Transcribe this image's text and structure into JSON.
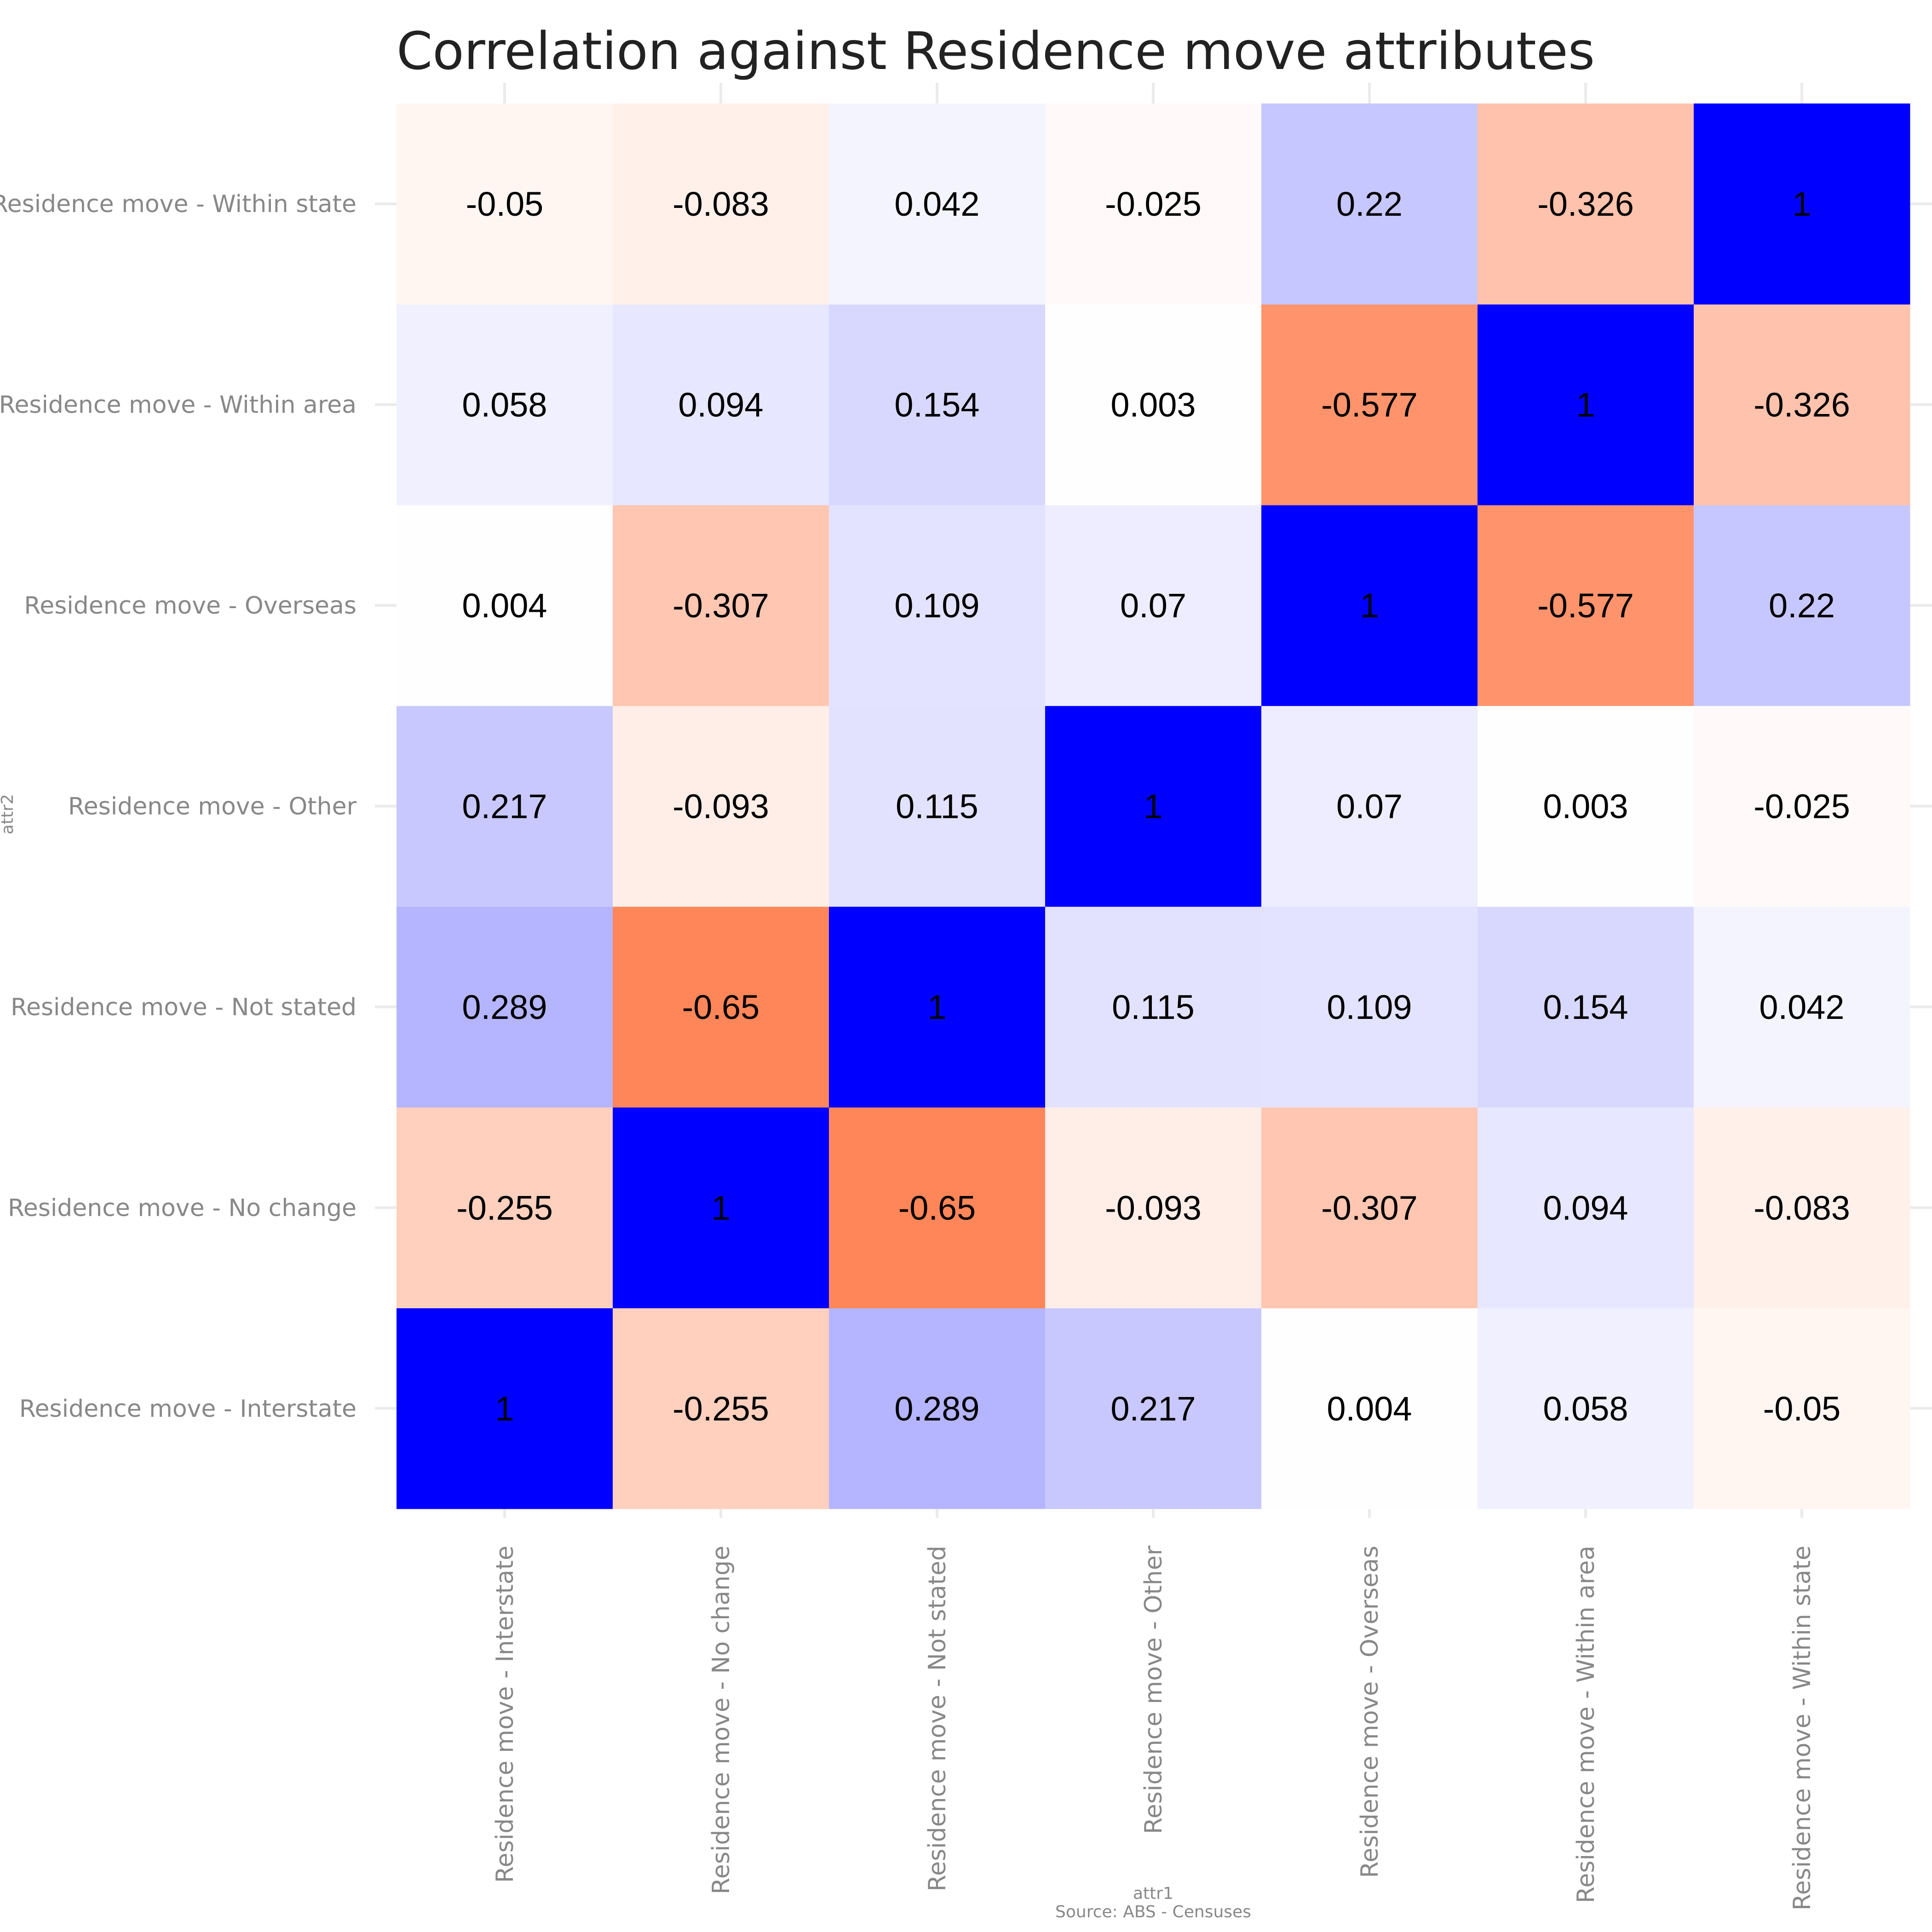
{
  "chart_data": {
    "type": "heatmap",
    "title": "Correlation against Residence move attributes",
    "xlabel": "attr1",
    "ylabel": "attr2",
    "caption": "Source: ABS - Censuses",
    "x_categories": [
      "Residence move - Interstate",
      "Residence move - No change",
      "Residence move - Not stated",
      "Residence move - Other",
      "Residence move - Overseas",
      "Residence move - Within area",
      "Residence move - Within state"
    ],
    "y_categories": [
      "Residence move - Interstate",
      "Residence move - No change",
      "Residence move - Not stated",
      "Residence move - Other",
      "Residence move - Overseas",
      "Residence move - Within area",
      "Residence move - Within state"
    ],
    "values": [
      [
        1,
        -0.255,
        0.289,
        0.217,
        0.004,
        0.058,
        -0.05
      ],
      [
        -0.255,
        1,
        -0.65,
        -0.093,
        -0.307,
        0.094,
        -0.083
      ],
      [
        0.289,
        -0.65,
        1,
        0.115,
        0.109,
        0.154,
        0.042
      ],
      [
        0.217,
        -0.093,
        0.115,
        1,
        0.07,
        0.003,
        -0.025
      ],
      [
        0.004,
        -0.307,
        0.109,
        0.07,
        1,
        -0.577,
        0.22
      ],
      [
        0.058,
        0.094,
        0.154,
        0.003,
        -0.577,
        1,
        -0.326
      ],
      [
        -0.05,
        -0.083,
        0.042,
        -0.025,
        0.22,
        -0.326,
        1
      ]
    ],
    "color_scale": {
      "low": "#ff4500",
      "mid": "#ffffff",
      "high": "#0000ff",
      "diagonal": "#0000ff"
    },
    "grid": true,
    "legend": "none"
  }
}
